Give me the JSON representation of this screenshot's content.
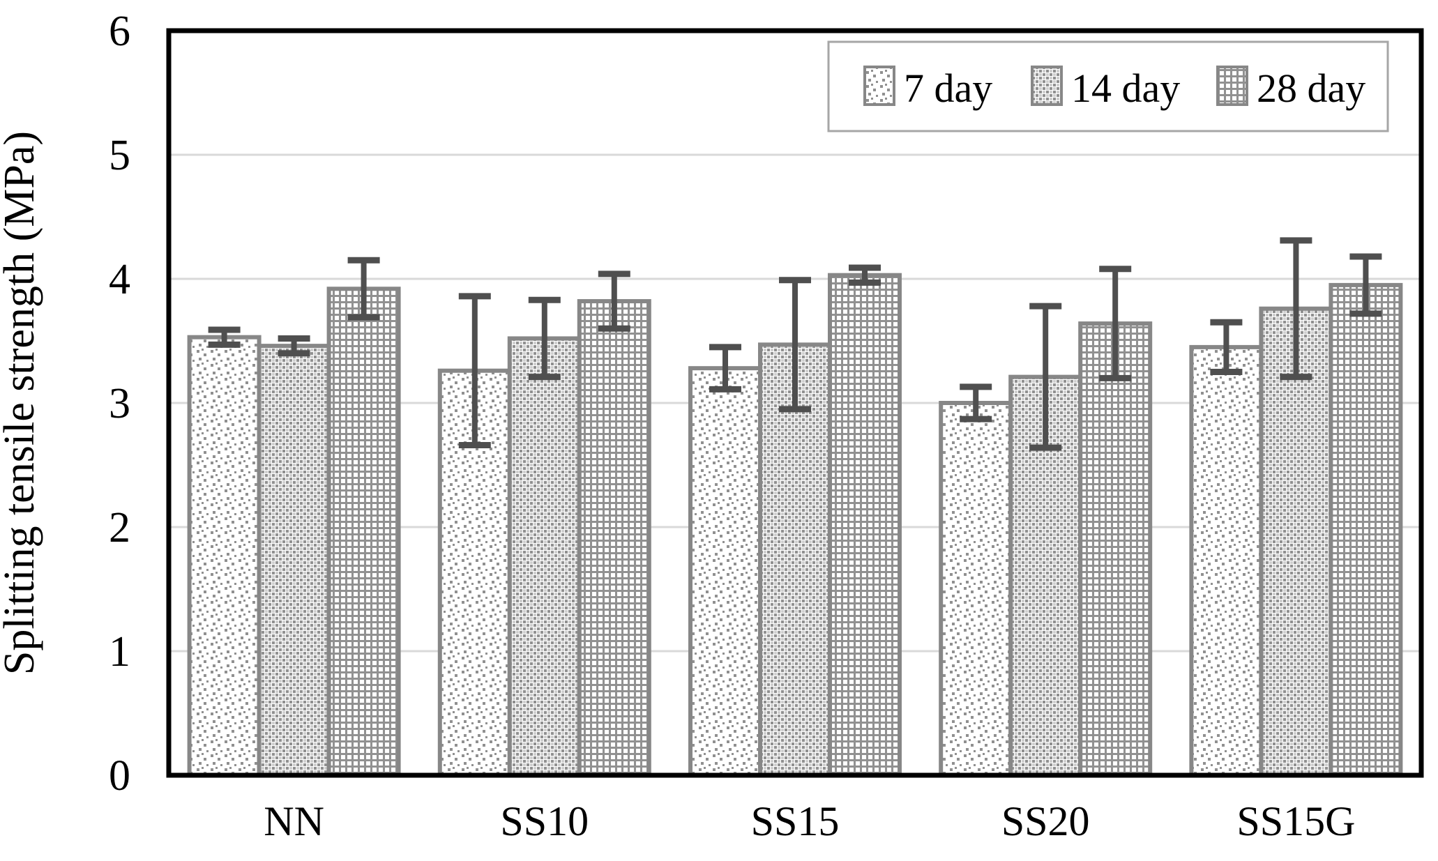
{
  "chart_data": {
    "type": "bar",
    "title": "",
    "xlabel": "",
    "ylabel": "Splitting tensile strength (MPa)",
    "ylim": [
      0,
      6
    ],
    "yticks": [
      0,
      1,
      2,
      3,
      4,
      5,
      6
    ],
    "grid": "horizontal-light-gray",
    "legend_position": "top-right-inside",
    "categories": [
      "NN",
      "SS10",
      "SS15",
      "SS20",
      "SS15G"
    ],
    "series": [
      {
        "name": "7 day",
        "pattern": "sparse-dots",
        "values": [
          3.53,
          3.26,
          3.28,
          3.0,
          3.45
        ],
        "errors": [
          0.06,
          0.6,
          0.17,
          0.13,
          0.2
        ]
      },
      {
        "name": "14 day",
        "pattern": "diamond-weave",
        "values": [
          3.46,
          3.52,
          3.47,
          3.21,
          3.76
        ],
        "errors": [
          0.06,
          0.31,
          0.52,
          0.57,
          0.55
        ]
      },
      {
        "name": "28 day",
        "pattern": "dense-waffle",
        "values": [
          3.92,
          3.82,
          4.03,
          3.64,
          3.95
        ],
        "errors": [
          0.23,
          0.22,
          0.06,
          0.44,
          0.23
        ]
      }
    ],
    "colors": {
      "background": "#ffffff",
      "frame": "#000000",
      "gridline": "#d9d9d9",
      "bar_border": "#878787",
      "pattern_ink": "#909090",
      "pattern_ink_light": "#cfcfcf",
      "error_bar": "#4f4f4f",
      "legend_border": "#a6a6a6",
      "text": "#000000"
    }
  }
}
